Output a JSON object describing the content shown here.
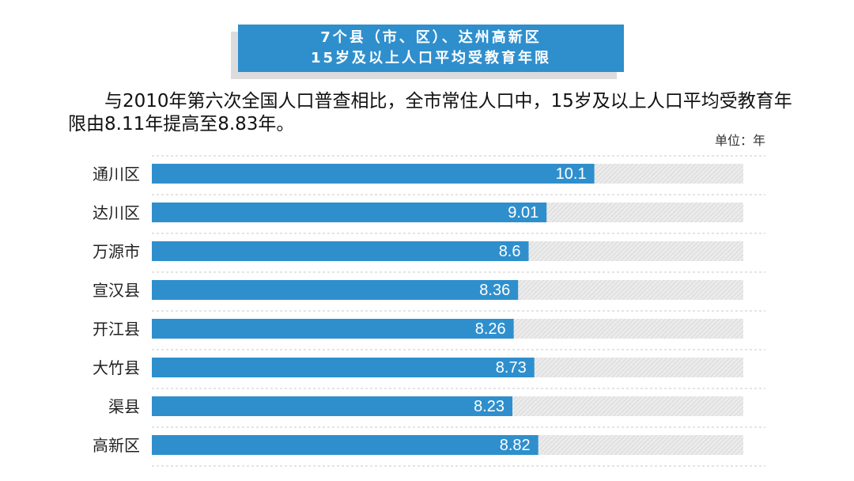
{
  "title": {
    "line1": "7个县（市、区）、达州高新区",
    "line2": "15岁及以上人口平均受教育年限"
  },
  "intro": "与2010年第六次全国人口普查相比，全市常住人口中，15岁及以上人口平均受教育年限由8.11年提高至8.83年。",
  "unit": "单位：年",
  "colors": {
    "bar": "#2f8fcd",
    "track": "#e6e6e6",
    "title_bg": "#2f8fcd"
  },
  "chart_data": {
    "type": "bar",
    "orientation": "horizontal",
    "categories": [
      "通川区",
      "达川区",
      "万源市",
      "宣汉县",
      "开江县",
      "大竹县",
      "渠县",
      "高新区"
    ],
    "values": [
      10.1,
      9.01,
      8.6,
      8.36,
      8.26,
      8.73,
      8.23,
      8.82
    ],
    "data_labels": [
      "10.1",
      "9.01",
      "8.6",
      "8.36",
      "8.26",
      "8.73",
      "8.23",
      "8.82"
    ],
    "xlim": [
      0,
      13.5
    ],
    "grid": false
  }
}
